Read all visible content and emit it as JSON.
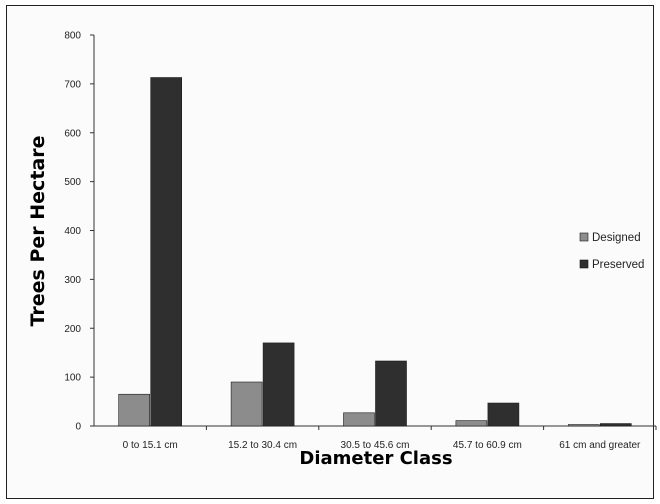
{
  "chart_data": {
    "type": "bar",
    "title": "",
    "xlabel": "Diameter Class",
    "ylabel": "Trees Per Hectare",
    "categories": [
      "0 to 15.1 cm",
      "15.2 to 30.4 cm",
      "30.5 to 45.6 cm",
      "45.7 to 60.9 cm",
      "61 cm and greater"
    ],
    "series": [
      {
        "name": "Designed",
        "color": "#8c8c8c",
        "values": [
          65,
          90,
          27,
          11,
          3
        ]
      },
      {
        "name": "Preserved",
        "color": "#2f2f2f",
        "values": [
          713,
          170,
          133,
          47,
          5
        ]
      }
    ],
    "ylim": [
      0,
      800
    ],
    "yticks": [
      0,
      100,
      200,
      300,
      400,
      500,
      600,
      700,
      800
    ],
    "grid": false,
    "legend_position": "right"
  }
}
